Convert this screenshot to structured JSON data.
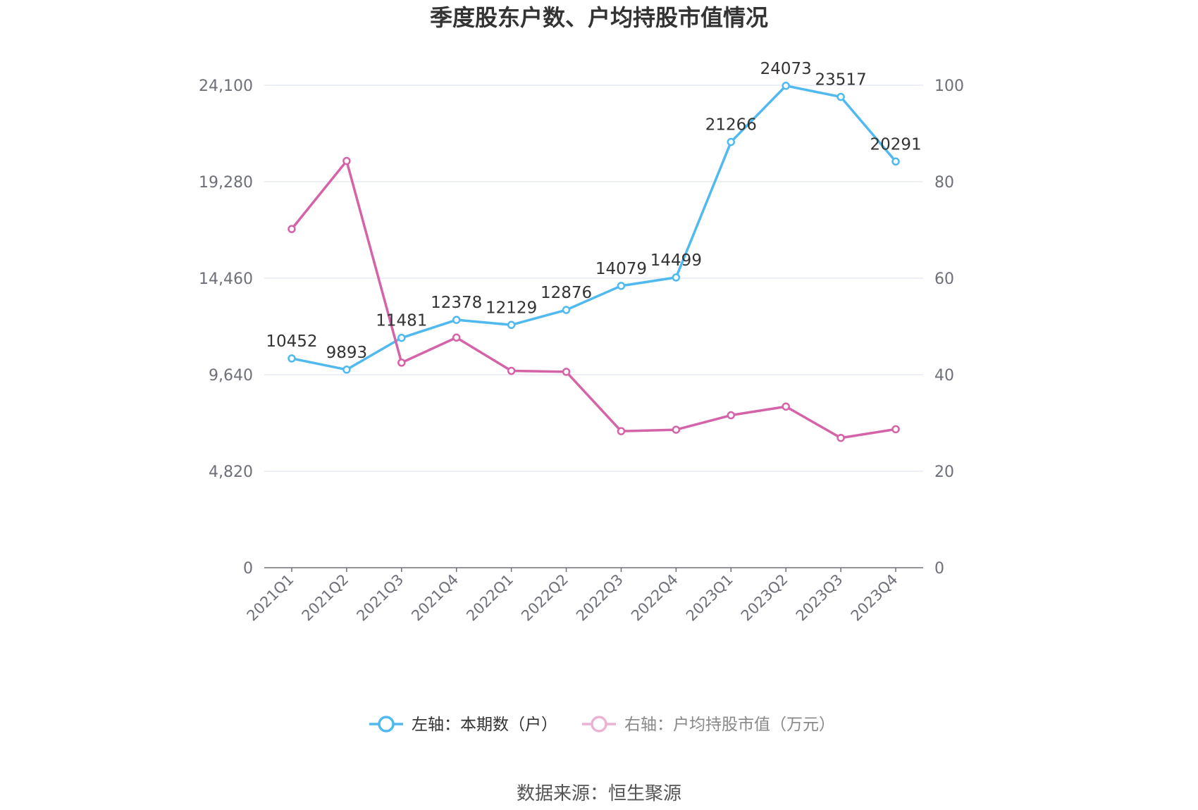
{
  "chart_data": {
    "type": "line",
    "title": "季度股东户数、户均持股市值情况",
    "categories": [
      "2021Q1",
      "2021Q2",
      "2021Q3",
      "2021Q4",
      "2022Q1",
      "2022Q2",
      "2022Q3",
      "2022Q4",
      "2023Q1",
      "2023Q2",
      "2023Q3",
      "2023Q4"
    ],
    "left_axis": {
      "ylim": [
        0,
        24100
      ],
      "ticks": [
        0,
        4820,
        9640,
        14460,
        19280,
        24100
      ],
      "tick_labels": [
        "0",
        "4,820",
        "9,640",
        "14,460",
        "19,280",
        "24,100"
      ]
    },
    "right_axis": {
      "ylim": [
        0,
        100
      ],
      "ticks": [
        0,
        20,
        40,
        60,
        80,
        100
      ],
      "tick_labels": [
        "0",
        "20",
        "40",
        "60",
        "80",
        "100"
      ]
    },
    "grid": true,
    "legend_position": "bottom-center",
    "series": [
      {
        "name": "左轴：本期数（户）",
        "axis": "left",
        "color": "#4fb9f0",
        "values": [
          10452,
          9893,
          11481,
          12378,
          12129,
          12876,
          14079,
          14499,
          21266,
          24073,
          23517,
          20291
        ],
        "data_labels": [
          "10452",
          "9893",
          "11481",
          "12378",
          "12129",
          "12876",
          "14079",
          "14499",
          "21266",
          "24073",
          "23517",
          "20291"
        ]
      },
      {
        "name": "右轴：户均持股市值（万元）",
        "axis": "right",
        "color": "#d563a8",
        "values": [
          70.2,
          84.3,
          42.5,
          47.7,
          40.8,
          40.6,
          28.3,
          28.6,
          31.6,
          33.4,
          26.9,
          28.7
        ]
      }
    ]
  },
  "source": "数据来源：恒生聚源"
}
